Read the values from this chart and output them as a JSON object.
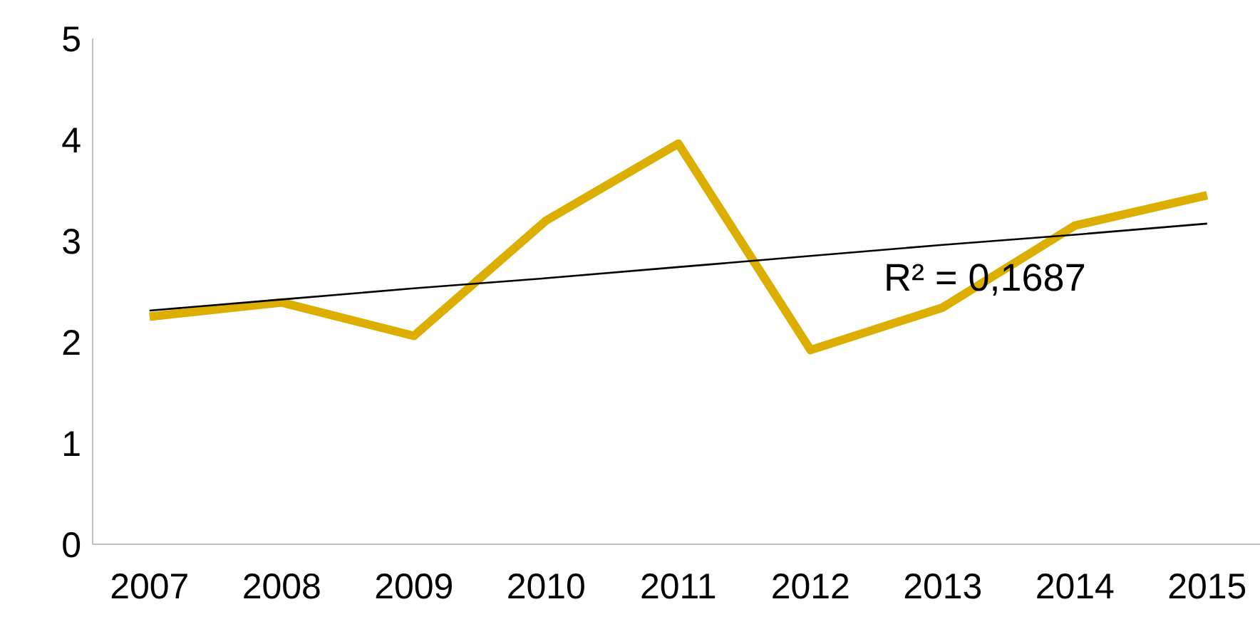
{
  "chart_data": {
    "type": "line",
    "categories": [
      "2007",
      "2008",
      "2009",
      "2010",
      "2011",
      "2012",
      "2013",
      "2014",
      "2015"
    ],
    "series": [
      {
        "color": "#dcae00",
        "values": [
          2.25,
          2.39,
          2.06,
          3.2,
          3.96,
          1.92,
          2.34,
          3.15,
          3.45
        ]
      },
      {
        "type": "line",
        "color": "#000000",
        "values": [
          2.31,
          2.42,
          2.53,
          2.63,
          2.74,
          2.85,
          2.96,
          3.06,
          3.17
        ]
      }
    ],
    "ylim": [
      0,
      5
    ],
    "yticks": [
      0,
      1,
      2,
      3,
      4,
      5
    ],
    "marker": "none",
    "annotations": [
      "R² = 0,1687"
    ]
  }
}
